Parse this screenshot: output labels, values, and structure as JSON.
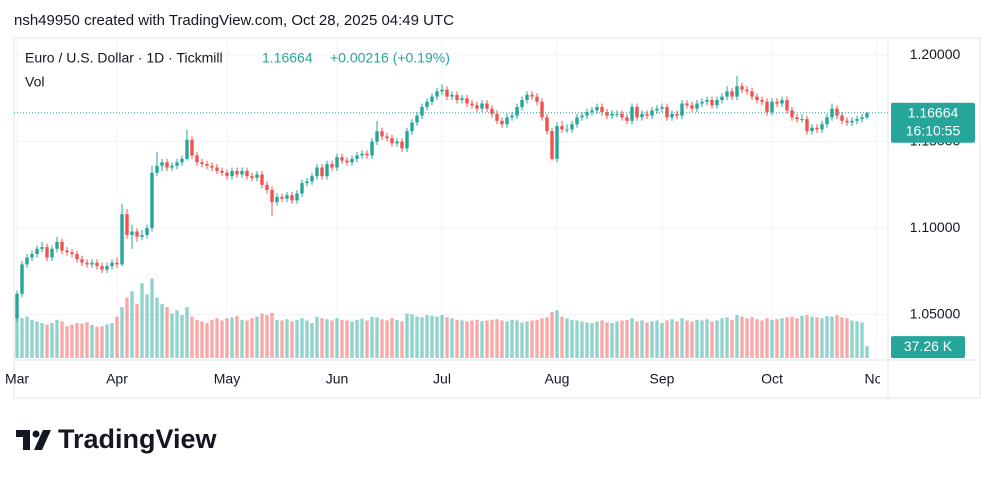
{
  "header": "nsh49950 created with TradingView.com, Oct 28, 2025 04:49 UTC",
  "logo": "TradingView",
  "chart_data": {
    "type": "candlestick",
    "title": "Euro / U.S. Dollar · 1D · Tickmill",
    "last_price": 1.16664,
    "change": "+0.00216 (+0.19%)",
    "countdown": "16:10:55",
    "up_color": "#26a69a",
    "down_color": "#ef5350",
    "ylim": [
      1.0249,
      1.2087
    ],
    "yticks": [
      {
        "value": 1.05,
        "label": "1.05000"
      },
      {
        "value": 1.1,
        "label": "1.10000"
      },
      {
        "value": 1.15,
        "label": "1.15000"
      },
      {
        "value": 1.2,
        "label": "1.20000"
      }
    ],
    "xlim": [
      -0.6,
      172.6
    ],
    "xticks": [
      {
        "value": 0,
        "label": "Mar"
      },
      {
        "value": 20,
        "label": "Apr"
      },
      {
        "value": 42,
        "label": "May"
      },
      {
        "value": 64,
        "label": "Jun"
      },
      {
        "value": 85,
        "label": "Jul"
      },
      {
        "value": 108,
        "label": "Aug"
      },
      {
        "value": 129,
        "label": "Sep"
      },
      {
        "value": 151,
        "label": "Oct"
      },
      {
        "value": 172,
        "label": "Nov"
      }
    ],
    "grid": true,
    "candles": [
      [
        1.048,
        1.064,
        1.046,
        1.062
      ],
      [
        1.062,
        1.081,
        1.06,
        1.079
      ],
      [
        1.079,
        1.085,
        1.077,
        1.083
      ],
      [
        1.083,
        1.087,
        1.081,
        1.085
      ],
      [
        1.085,
        1.09,
        1.083,
        1.088
      ],
      [
        1.088,
        1.092,
        1.086,
        1.089
      ],
      [
        1.089,
        1.091,
        1.081,
        1.083
      ],
      [
        1.083,
        1.09,
        1.081,
        1.088
      ],
      [
        1.088,
        1.095,
        1.086,
        1.092
      ],
      [
        1.092,
        1.094,
        1.085,
        1.087
      ],
      [
        1.087,
        1.089,
        1.084,
        1.086
      ],
      [
        1.086,
        1.088,
        1.083,
        1.085
      ],
      [
        1.085,
        1.087,
        1.08,
        1.082
      ],
      [
        1.082,
        1.084,
        1.078,
        1.08
      ],
      [
        1.08,
        1.082,
        1.077,
        1.079
      ],
      [
        1.079,
        1.082,
        1.077,
        1.08
      ],
      [
        1.08,
        1.082,
        1.076,
        1.078
      ],
      [
        1.078,
        1.08,
        1.074,
        1.076
      ],
      [
        1.076,
        1.08,
        1.074,
        1.078
      ],
      [
        1.078,
        1.082,
        1.076,
        1.08
      ],
      [
        1.08,
        1.083,
        1.077,
        1.079
      ],
      [
        1.079,
        1.114,
        1.078,
        1.108
      ],
      [
        1.108,
        1.111,
        1.094,
        1.096
      ],
      [
        1.096,
        1.102,
        1.088,
        1.098
      ],
      [
        1.098,
        1.1,
        1.092,
        1.095
      ],
      [
        1.095,
        1.099,
        1.093,
        1.096
      ],
      [
        1.096,
        1.102,
        1.094,
        1.1
      ],
      [
        1.1,
        1.136,
        1.098,
        1.132
      ],
      [
        1.132,
        1.144,
        1.13,
        1.136
      ],
      [
        1.136,
        1.14,
        1.133,
        1.138
      ],
      [
        1.138,
        1.14,
        1.133,
        1.135
      ],
      [
        1.135,
        1.138,
        1.133,
        1.136
      ],
      [
        1.136,
        1.14,
        1.134,
        1.138
      ],
      [
        1.138,
        1.142,
        1.136,
        1.14
      ],
      [
        1.14,
        1.157,
        1.139,
        1.151
      ],
      [
        1.151,
        1.153,
        1.14,
        1.142
      ],
      [
        1.142,
        1.144,
        1.136,
        1.138
      ],
      [
        1.138,
        1.14,
        1.135,
        1.137
      ],
      [
        1.137,
        1.139,
        1.134,
        1.136
      ],
      [
        1.136,
        1.138,
        1.133,
        1.135
      ],
      [
        1.135,
        1.137,
        1.131,
        1.133
      ],
      [
        1.133,
        1.135,
        1.13,
        1.132
      ],
      [
        1.132,
        1.134,
        1.128,
        1.13
      ],
      [
        1.13,
        1.135,
        1.128,
        1.133
      ],
      [
        1.133,
        1.135,
        1.129,
        1.131
      ],
      [
        1.131,
        1.135,
        1.129,
        1.133
      ],
      [
        1.133,
        1.135,
        1.128,
        1.13
      ],
      [
        1.13,
        1.132,
        1.127,
        1.129
      ],
      [
        1.129,
        1.133,
        1.127,
        1.131
      ],
      [
        1.131,
        1.133,
        1.123,
        1.125
      ],
      [
        1.125,
        1.127,
        1.12,
        1.122
      ],
      [
        1.122,
        1.124,
        1.107,
        1.115
      ],
      [
        1.115,
        1.12,
        1.113,
        1.118
      ],
      [
        1.118,
        1.12,
        1.115,
        1.117
      ],
      [
        1.117,
        1.121,
        1.115,
        1.119
      ],
      [
        1.119,
        1.121,
        1.114,
        1.116
      ],
      [
        1.116,
        1.122,
        1.114,
        1.12
      ],
      [
        1.12,
        1.128,
        1.118,
        1.126
      ],
      [
        1.126,
        1.129,
        1.124,
        1.127
      ],
      [
        1.127,
        1.132,
        1.125,
        1.13
      ],
      [
        1.13,
        1.137,
        1.128,
        1.135
      ],
      [
        1.135,
        1.137,
        1.128,
        1.13
      ],
      [
        1.13,
        1.139,
        1.128,
        1.137
      ],
      [
        1.137,
        1.139,
        1.133,
        1.135
      ],
      [
        1.135,
        1.143,
        1.133,
        1.141
      ],
      [
        1.141,
        1.143,
        1.137,
        1.139
      ],
      [
        1.139,
        1.141,
        1.136,
        1.138
      ],
      [
        1.138,
        1.142,
        1.136,
        1.14
      ],
      [
        1.14,
        1.144,
        1.138,
        1.142
      ],
      [
        1.142,
        1.145,
        1.14,
        1.143
      ],
      [
        1.143,
        1.145,
        1.14,
        1.142
      ],
      [
        1.142,
        1.152,
        1.14,
        1.15
      ],
      [
        1.15,
        1.162,
        1.148,
        1.156
      ],
      [
        1.156,
        1.158,
        1.151,
        1.153
      ],
      [
        1.153,
        1.155,
        1.15,
        1.152
      ],
      [
        1.152,
        1.154,
        1.147,
        1.149
      ],
      [
        1.149,
        1.152,
        1.147,
        1.15
      ],
      [
        1.15,
        1.152,
        1.144,
        1.146
      ],
      [
        1.146,
        1.158,
        1.144,
        1.156
      ],
      [
        1.156,
        1.163,
        1.154,
        1.161
      ],
      [
        1.161,
        1.167,
        1.159,
        1.165
      ],
      [
        1.165,
        1.172,
        1.163,
        1.17
      ],
      [
        1.17,
        1.175,
        1.168,
        1.173
      ],
      [
        1.173,
        1.178,
        1.171,
        1.176
      ],
      [
        1.176,
        1.181,
        1.174,
        1.179
      ],
      [
        1.179,
        1.183,
        1.177,
        1.18
      ],
      [
        1.18,
        1.182,
        1.174,
        1.176
      ],
      [
        1.176,
        1.179,
        1.174,
        1.177
      ],
      [
        1.177,
        1.179,
        1.172,
        1.174
      ],
      [
        1.174,
        1.177,
        1.172,
        1.175
      ],
      [
        1.175,
        1.177,
        1.17,
        1.172
      ],
      [
        1.172,
        1.174,
        1.169,
        1.171
      ],
      [
        1.171,
        1.173,
        1.167,
        1.169
      ],
      [
        1.169,
        1.174,
        1.167,
        1.172
      ],
      [
        1.172,
        1.174,
        1.167,
        1.169
      ],
      [
        1.169,
        1.171,
        1.164,
        1.166
      ],
      [
        1.166,
        1.168,
        1.16,
        1.162
      ],
      [
        1.162,
        1.164,
        1.158,
        1.16
      ],
      [
        1.16,
        1.166,
        1.158,
        1.164
      ],
      [
        1.164,
        1.167,
        1.162,
        1.165
      ],
      [
        1.165,
        1.172,
        1.163,
        1.17
      ],
      [
        1.17,
        1.176,
        1.168,
        1.174
      ],
      [
        1.174,
        1.179,
        1.172,
        1.177
      ],
      [
        1.177,
        1.179,
        1.174,
        1.176
      ],
      [
        1.176,
        1.178,
        1.171,
        1.173
      ],
      [
        1.173,
        1.175,
        1.162,
        1.164
      ],
      [
        1.164,
        1.166,
        1.154,
        1.156
      ],
      [
        1.156,
        1.158,
        1.139,
        1.14
      ],
      [
        1.14,
        1.161,
        1.138,
        1.159
      ],
      [
        1.159,
        1.162,
        1.155,
        1.157
      ],
      [
        1.157,
        1.16,
        1.155,
        1.157
      ],
      [
        1.157,
        1.162,
        1.155,
        1.16
      ],
      [
        1.16,
        1.166,
        1.158,
        1.164
      ],
      [
        1.164,
        1.167,
        1.162,
        1.165
      ],
      [
        1.165,
        1.169,
        1.163,
        1.167
      ],
      [
        1.167,
        1.17,
        1.165,
        1.168
      ],
      [
        1.168,
        1.172,
        1.166,
        1.17
      ],
      [
        1.17,
        1.172,
        1.165,
        1.167
      ],
      [
        1.167,
        1.169,
        1.163,
        1.165
      ],
      [
        1.165,
        1.168,
        1.163,
        1.166
      ],
      [
        1.166,
        1.168,
        1.164,
        1.166
      ],
      [
        1.166,
        1.168,
        1.162,
        1.164
      ],
      [
        1.164,
        1.166,
        1.16,
        1.162
      ],
      [
        1.162,
        1.172,
        1.16,
        1.17
      ],
      [
        1.17,
        1.172,
        1.162,
        1.164
      ],
      [
        1.164,
        1.168,
        1.162,
        1.166
      ],
      [
        1.166,
        1.168,
        1.163,
        1.165
      ],
      [
        1.165,
        1.17,
        1.163,
        1.168
      ],
      [
        1.168,
        1.171,
        1.166,
        1.169
      ],
      [
        1.169,
        1.172,
        1.167,
        1.17
      ],
      [
        1.17,
        1.172,
        1.162,
        1.164
      ],
      [
        1.164,
        1.168,
        1.162,
        1.166
      ],
      [
        1.166,
        1.168,
        1.163,
        1.165
      ],
      [
        1.165,
        1.174,
        1.163,
        1.172
      ],
      [
        1.172,
        1.174,
        1.169,
        1.171
      ],
      [
        1.171,
        1.173,
        1.167,
        1.169
      ],
      [
        1.169,
        1.174,
        1.167,
        1.172
      ],
      [
        1.172,
        1.175,
        1.17,
        1.173
      ],
      [
        1.173,
        1.176,
        1.171,
        1.174
      ],
      [
        1.174,
        1.176,
        1.169,
        1.171
      ],
      [
        1.171,
        1.176,
        1.169,
        1.174
      ],
      [
        1.174,
        1.178,
        1.172,
        1.176
      ],
      [
        1.176,
        1.182,
        1.174,
        1.179
      ],
      [
        1.179,
        1.181,
        1.174,
        1.176
      ],
      [
        1.176,
        1.188,
        1.174,
        1.182
      ],
      [
        1.182,
        1.184,
        1.178,
        1.18
      ],
      [
        1.18,
        1.182,
        1.177,
        1.179
      ],
      [
        1.179,
        1.181,
        1.174,
        1.176
      ],
      [
        1.176,
        1.178,
        1.172,
        1.174
      ],
      [
        1.174,
        1.176,
        1.171,
        1.173
      ],
      [
        1.173,
        1.175,
        1.165,
        1.167
      ],
      [
        1.167,
        1.175,
        1.165,
        1.173
      ],
      [
        1.173,
        1.175,
        1.17,
        1.172
      ],
      [
        1.172,
        1.176,
        1.17,
        1.174
      ],
      [
        1.174,
        1.176,
        1.166,
        1.168
      ],
      [
        1.168,
        1.17,
        1.162,
        1.164
      ],
      [
        1.164,
        1.166,
        1.161,
        1.163
      ],
      [
        1.163,
        1.166,
        1.161,
        1.163
      ],
      [
        1.163,
        1.165,
        1.154,
        1.156
      ],
      [
        1.156,
        1.16,
        1.154,
        1.158
      ],
      [
        1.158,
        1.16,
        1.155,
        1.157
      ],
      [
        1.157,
        1.162,
        1.155,
        1.16
      ],
      [
        1.16,
        1.166,
        1.158,
        1.164
      ],
      [
        1.164,
        1.172,
        1.162,
        1.169
      ],
      [
        1.169,
        1.171,
        1.163,
        1.165
      ],
      [
        1.165,
        1.167,
        1.16,
        1.162
      ],
      [
        1.162,
        1.164,
        1.159,
        1.161
      ],
      [
        1.161,
        1.164,
        1.159,
        1.162
      ],
      [
        1.162,
        1.165,
        1.16,
        1.163
      ],
      [
        1.163,
        1.166,
        1.161,
        1.164
      ],
      [
        1.164,
        1.167,
        1.163,
        1.1666
      ]
    ],
    "volume": {
      "name": "Vol",
      "last_label": "37.26 K",
      "ylim": [
        0,
        1000000
      ],
      "values": [
        140000,
        125000,
        130000,
        120000,
        115000,
        110000,
        105000,
        110000,
        120000,
        115000,
        100000,
        105000,
        110000,
        108000,
        112000,
        104000,
        98000,
        100000,
        106000,
        110000,
        130000,
        160000,
        190000,
        210000,
        170000,
        235000,
        200000,
        250000,
        190000,
        170000,
        160000,
        140000,
        150000,
        135000,
        160000,
        130000,
        120000,
        115000,
        110000,
        120000,
        125000,
        118000,
        125000,
        128000,
        132000,
        120000,
        118000,
        125000,
        130000,
        140000,
        135000,
        142000,
        120000,
        118000,
        122000,
        115000,
        120000,
        125000,
        118000,
        110000,
        130000,
        125000,
        122000,
        118000,
        125000,
        120000,
        118000,
        115000,
        120000,
        124000,
        118000,
        130000,
        128000,
        122000,
        118000,
        125000,
        120000,
        115000,
        140000,
        138000,
        130000,
        128000,
        135000,
        132000,
        130000,
        135000,
        128000,
        125000,
        120000,
        118000,
        115000,
        118000,
        120000,
        116000,
        118000,
        120000,
        122000,
        118000,
        115000,
        120000,
        118000,
        112000,
        115000,
        118000,
        120000,
        125000,
        128000,
        145000,
        150000,
        130000,
        125000,
        120000,
        118000,
        115000,
        112000,
        110000,
        115000,
        118000,
        112000,
        110000,
        115000,
        118000,
        120000,
        125000,
        115000,
        118000,
        112000,
        115000,
        118000,
        110000,
        118000,
        122000,
        115000,
        125000,
        118000,
        115000,
        120000,
        118000,
        122000,
        115000,
        118000,
        125000,
        128000,
        120000,
        135000,
        130000,
        125000,
        128000,
        122000,
        118000,
        125000,
        120000,
        122000,
        125000,
        128000,
        130000,
        125000,
        132000,
        135000,
        130000,
        128000,
        125000,
        132000,
        130000,
        135000,
        128000,
        125000,
        118000,
        115000,
        112000,
        37260
      ]
    }
  }
}
